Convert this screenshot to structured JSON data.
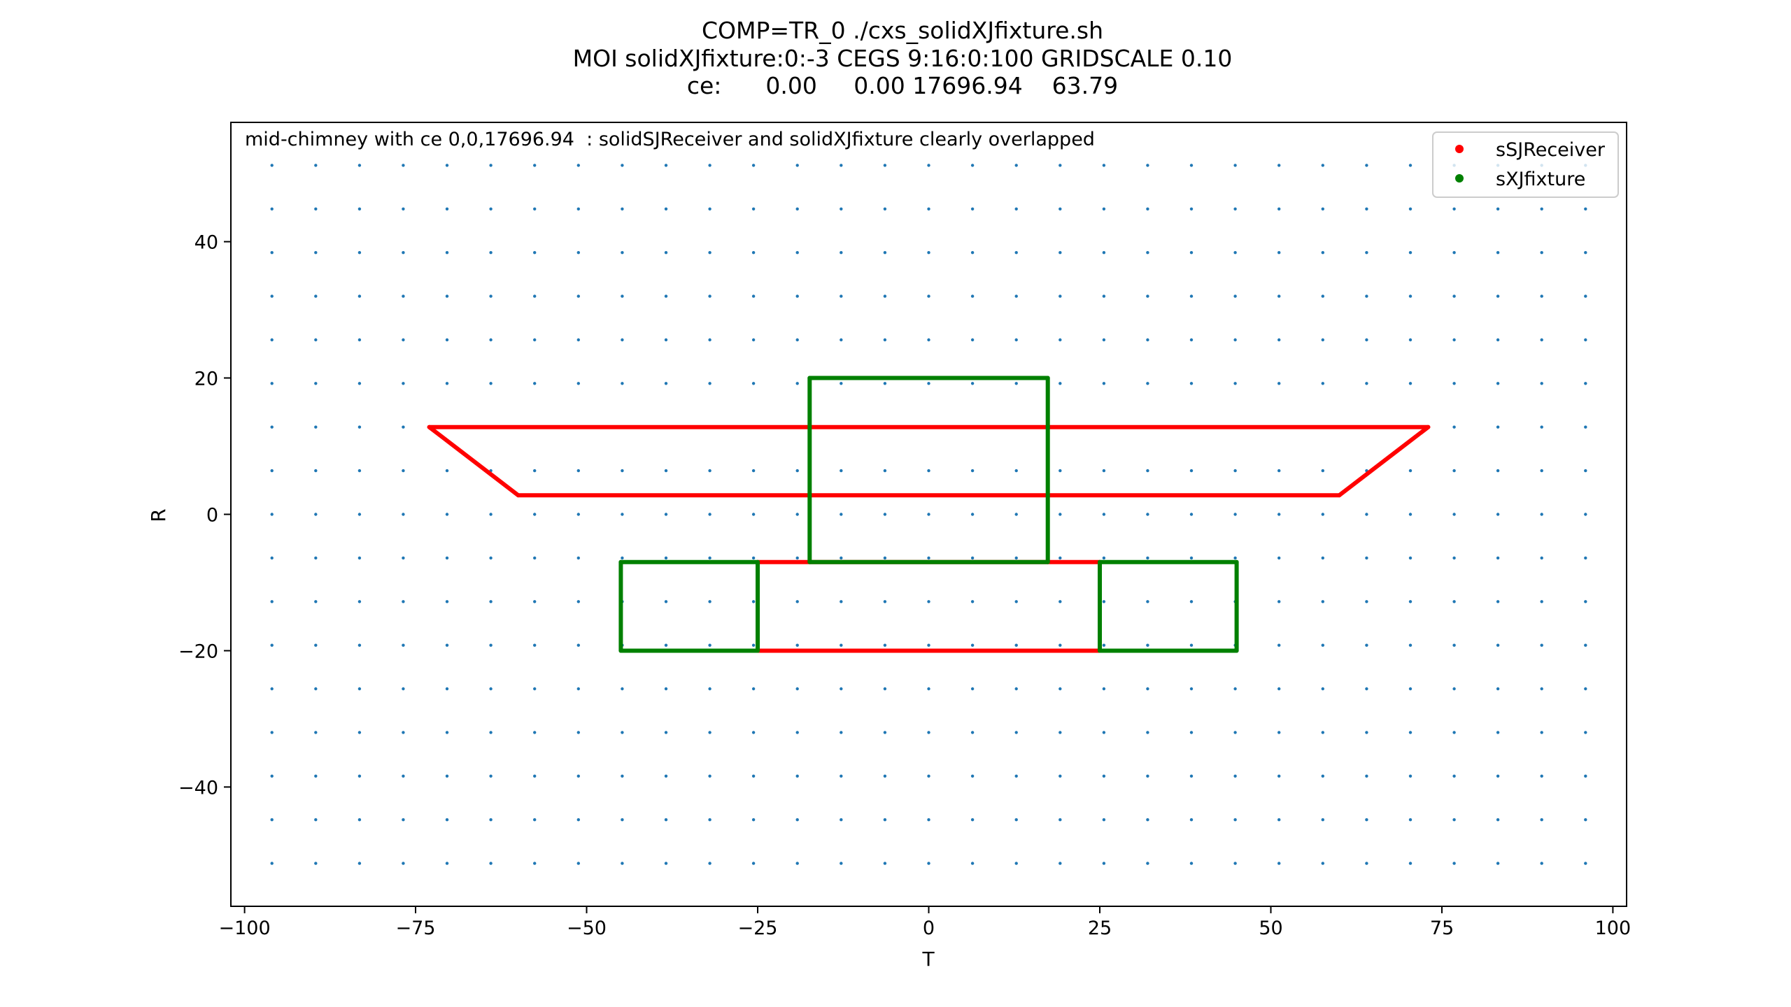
{
  "chart_data": {
    "type": "scatter",
    "title_lines": [
      "COMP=TR_0 ./cxs_solidXJfixture.sh",
      "MOI solidXJfixture:0:-3 CEGS 9:16:0:100 GRIDSCALE 0.10",
      "ce:      0.00     0.00 17696.94    63.79"
    ],
    "annotation": "mid-chimney with ce 0,0,17696.94  : solidSJReceiver and solidXJfixture clearly overlapped",
    "xlabel": "T",
    "ylabel": "R",
    "xlim": [
      -102,
      102
    ],
    "ylim": [
      -57.5,
      57.5
    ],
    "x_ticks": [
      -100,
      -75,
      -50,
      -25,
      0,
      25,
      50,
      75,
      100
    ],
    "x_tick_labels": [
      "−100",
      "−75",
      "−50",
      "−25",
      "0",
      "25",
      "50",
      "75",
      "100"
    ],
    "y_ticks": [
      -40,
      -20,
      0,
      20,
      40
    ],
    "y_tick_labels": [
      "−40",
      "−20",
      "0",
      "20",
      "40"
    ],
    "grid": false,
    "legend_position": "top-right",
    "grid_points": {
      "color": "#1f77b4",
      "x_start": -96,
      "x_step": 6.4,
      "x_count": 31,
      "y_start": -51.2,
      "y_step": 6.4,
      "y_count": 17
    },
    "series": [
      {
        "name": "sSJReceiver",
        "color": "#ff0000",
        "segments": [
          [
            [
              -73,
              12.8
            ],
            [
              73,
              12.8
            ]
          ],
          [
            [
              -73,
              12.8
            ],
            [
              -60,
              2.8
            ]
          ],
          [
            [
              73,
              12.8
            ],
            [
              60,
              2.8
            ]
          ],
          [
            [
              -60,
              2.8
            ],
            [
              60,
              2.8
            ]
          ],
          [
            [
              -25,
              -7
            ],
            [
              25,
              -7
            ]
          ],
          [
            [
              -25,
              -20
            ],
            [
              25,
              -20
            ]
          ]
        ]
      },
      {
        "name": "sXJfixture",
        "color": "#008000",
        "segments": [
          [
            [
              -17.4,
              20
            ],
            [
              17.4,
              20
            ]
          ],
          [
            [
              -17.4,
              20
            ],
            [
              -17.4,
              -7
            ]
          ],
          [
            [
              17.4,
              20
            ],
            [
              17.4,
              -7
            ]
          ],
          [
            [
              -17.4,
              -7
            ],
            [
              17.4,
              -7
            ]
          ],
          [
            [
              -45,
              -7
            ],
            [
              -25,
              -7
            ]
          ],
          [
            [
              -45,
              -20
            ],
            [
              -25,
              -20
            ]
          ],
          [
            [
              -45,
              -7
            ],
            [
              -45,
              -20
            ]
          ],
          [
            [
              -25,
              -7
            ],
            [
              -25,
              -20
            ]
          ],
          [
            [
              25,
              -7
            ],
            [
              45,
              -7
            ]
          ],
          [
            [
              25,
              -20
            ],
            [
              45,
              -20
            ]
          ],
          [
            [
              25,
              -7
            ],
            [
              25,
              -20
            ]
          ],
          [
            [
              45,
              -7
            ],
            [
              45,
              -20
            ]
          ]
        ]
      }
    ]
  }
}
